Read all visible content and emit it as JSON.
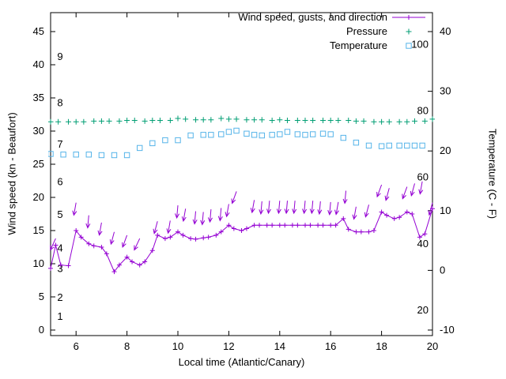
{
  "chart_data": {
    "type": "line",
    "xlabel": "Local time (Atlantic/Canary)",
    "ylabel_left": "Wind speed (kn - Beaufort)",
    "ylabel_right": "Temperature (C - F)",
    "x_range": [
      5,
      20
    ],
    "x_ticks": [
      "6",
      "8",
      "10",
      "12",
      "14",
      "16",
      "18",
      "20"
    ],
    "y_left_range": [
      -0.8,
      47.9
    ],
    "y_left_ticks": [
      "0",
      "5",
      "10",
      "15",
      "20",
      "25",
      "30",
      "35",
      "40",
      "45"
    ],
    "y_right_range": [
      -10.9,
      43.2
    ],
    "y_right_ticks": [
      "-10",
      "0",
      "10",
      "20",
      "30",
      "40"
    ],
    "grid": false,
    "legend_position": "top-right-inside",
    "beaufort_labels": [
      [
        "1",
        2.0
      ],
      [
        "2",
        4.9
      ],
      [
        "3",
        9.2
      ],
      [
        "4",
        12.3
      ],
      [
        "5",
        17.4
      ],
      [
        "6",
        22.3
      ],
      [
        "7",
        28.0
      ],
      [
        "8",
        34.2
      ],
      [
        "9",
        41.2
      ]
    ],
    "fahrenheit_labels": [
      [
        "20",
        -6.7
      ],
      [
        "40",
        4.4
      ],
      [
        "60",
        15.6
      ],
      [
        "80",
        26.7
      ],
      [
        "100",
        37.8
      ]
    ],
    "legend": {
      "entries": [
        {
          "label": "Wind speed, gusts, and direction",
          "marker": "line-plus",
          "color": "#9400d3"
        },
        {
          "label": "Pressure",
          "marker": "plus",
          "color": "#009e73"
        },
        {
          "label": "Temperature",
          "marker": "square",
          "color": "#56b4e9"
        }
      ]
    },
    "series": {
      "wind_speed": {
        "name": "Wind speed, gusts, and direction",
        "color": "#9400d3",
        "axis": "left",
        "points": [
          [
            5,
            9.3
          ],
          [
            5.2,
            12.8
          ],
          [
            5.4,
            9.8
          ],
          [
            5.7,
            9.7
          ],
          [
            6,
            15
          ],
          [
            6.2,
            14
          ],
          [
            6.5,
            13
          ],
          [
            6.7,
            12.7
          ],
          [
            7,
            12.5
          ],
          [
            7.2,
            11.5
          ],
          [
            7.5,
            8.8
          ],
          [
            7.7,
            9.8
          ],
          [
            8,
            11
          ],
          [
            8.2,
            10.3
          ],
          [
            8.5,
            9.8
          ],
          [
            8.7,
            10.3
          ],
          [
            9,
            12
          ],
          [
            9.2,
            14.3
          ],
          [
            9.5,
            13.8
          ],
          [
            9.7,
            14
          ],
          [
            10,
            14.8
          ],
          [
            10.2,
            14.3
          ],
          [
            10.5,
            13.8
          ],
          [
            10.7,
            13.7
          ],
          [
            11,
            13.9
          ],
          [
            11.2,
            14
          ],
          [
            11.5,
            14.3
          ],
          [
            11.7,
            14.8
          ],
          [
            12,
            15.8
          ],
          [
            12.2,
            15.3
          ],
          [
            12.5,
            15
          ],
          [
            12.7,
            15.3
          ],
          [
            13,
            15.8
          ],
          [
            13.2,
            15.8
          ],
          [
            13.5,
            15.8
          ],
          [
            13.7,
            15.8
          ],
          [
            14,
            15.8
          ],
          [
            14.2,
            15.8
          ],
          [
            14.5,
            15.8
          ],
          [
            14.7,
            15.8
          ],
          [
            15,
            15.8
          ],
          [
            15.2,
            15.8
          ],
          [
            15.5,
            15.8
          ],
          [
            15.7,
            15.8
          ],
          [
            16,
            15.8
          ],
          [
            16.2,
            15.8
          ],
          [
            16.5,
            16.8
          ],
          [
            16.7,
            15.2
          ],
          [
            17,
            14.8
          ],
          [
            17.2,
            14.8
          ],
          [
            17.5,
            14.8
          ],
          [
            17.7,
            15
          ],
          [
            18,
            17.8
          ],
          [
            18.2,
            17.3
          ],
          [
            18.5,
            16.8
          ],
          [
            18.7,
            17
          ],
          [
            19,
            17.8
          ],
          [
            19.2,
            17.5
          ],
          [
            19.5,
            14
          ],
          [
            19.7,
            14.5
          ],
          [
            20,
            18.3
          ]
        ]
      },
      "wind_gust_arrows": {
        "name": "gust direction arrows",
        "color": "#9400d3",
        "axis": "left",
        "points": [
          [
            5.2,
            13.8,
            205
          ],
          [
            6,
            19.2,
            190
          ],
          [
            6.5,
            17.3,
            185
          ],
          [
            7,
            16.2,
            190
          ],
          [
            7.5,
            14.8,
            195
          ],
          [
            8,
            14.3,
            200
          ],
          [
            8.5,
            13.8,
            205
          ],
          [
            9.2,
            16.4,
            195
          ],
          [
            9.7,
            16.5,
            190
          ],
          [
            10,
            18.8,
            185
          ],
          [
            10.3,
            18.3,
            190
          ],
          [
            10.7,
            17.9,
            185
          ],
          [
            11,
            17.8,
            185
          ],
          [
            11.3,
            18.2,
            185
          ],
          [
            11.7,
            18.4,
            185
          ],
          [
            12,
            19,
            190
          ],
          [
            12.3,
            20.9,
            200
          ],
          [
            13,
            19.6,
            190
          ],
          [
            13.3,
            19.4,
            185
          ],
          [
            13.6,
            19.5,
            185
          ],
          [
            14,
            19.5,
            185
          ],
          [
            14.3,
            19.5,
            185
          ],
          [
            14.6,
            19.5,
            185
          ],
          [
            15,
            19.5,
            185
          ],
          [
            15.3,
            19.5,
            185
          ],
          [
            15.6,
            19.4,
            185
          ],
          [
            16,
            19.3,
            185
          ],
          [
            16.3,
            19.3,
            190
          ],
          [
            16.6,
            21,
            185
          ],
          [
            17,
            18.6,
            190
          ],
          [
            17.5,
            18.9,
            195
          ],
          [
            18,
            21.9,
            200
          ],
          [
            18.3,
            21.4,
            195
          ],
          [
            19,
            21.6,
            200
          ],
          [
            19.3,
            22.1,
            195
          ],
          [
            19.6,
            22.4,
            190
          ],
          [
            20,
            19.2,
            195
          ]
        ]
      },
      "pressure": {
        "name": "Pressure",
        "color": "#009e73",
        "axis": "left",
        "points": [
          [
            5,
            31.4
          ],
          [
            5.3,
            31.4
          ],
          [
            5.7,
            31.4
          ],
          [
            6,
            31.4
          ],
          [
            6.3,
            31.4
          ],
          [
            6.7,
            31.5
          ],
          [
            7,
            31.5
          ],
          [
            7.3,
            31.5
          ],
          [
            7.7,
            31.5
          ],
          [
            8,
            31.6
          ],
          [
            8.3,
            31.6
          ],
          [
            8.7,
            31.5
          ],
          [
            9,
            31.6
          ],
          [
            9.3,
            31.6
          ],
          [
            9.7,
            31.6
          ],
          [
            10,
            31.9
          ],
          [
            10.3,
            31.8
          ],
          [
            10.7,
            31.7
          ],
          [
            11,
            31.7
          ],
          [
            11.3,
            31.7
          ],
          [
            11.7,
            31.9
          ],
          [
            12,
            31.8
          ],
          [
            12.3,
            31.8
          ],
          [
            12.7,
            31.7
          ],
          [
            13,
            31.7
          ],
          [
            13.3,
            31.7
          ],
          [
            13.7,
            31.6
          ],
          [
            14,
            31.7
          ],
          [
            14.3,
            31.6
          ],
          [
            14.7,
            31.6
          ],
          [
            15,
            31.6
          ],
          [
            15.3,
            31.6
          ],
          [
            15.7,
            31.6
          ],
          [
            16,
            31.6
          ],
          [
            16.3,
            31.6
          ],
          [
            16.7,
            31.6
          ],
          [
            17,
            31.5
          ],
          [
            17.3,
            31.5
          ],
          [
            17.7,
            31.4
          ],
          [
            18,
            31.4
          ],
          [
            18.3,
            31.4
          ],
          [
            18.7,
            31.4
          ],
          [
            19,
            31.4
          ],
          [
            19.3,
            31.5
          ],
          [
            19.7,
            31.5
          ],
          [
            20,
            31.8
          ]
        ]
      },
      "temperature": {
        "name": "Temperature",
        "color": "#56b4e9",
        "axis": "right",
        "points": [
          [
            5,
            19.5
          ],
          [
            5.5,
            19.4
          ],
          [
            6,
            19.4
          ],
          [
            6.5,
            19.4
          ],
          [
            7,
            19.3
          ],
          [
            7.5,
            19.3
          ],
          [
            8,
            19.3
          ],
          [
            8.5,
            20.5
          ],
          [
            9,
            21.3
          ],
          [
            9.5,
            21.8
          ],
          [
            10,
            21.8
          ],
          [
            10.5,
            22.6
          ],
          [
            11,
            22.7
          ],
          [
            11.3,
            22.7
          ],
          [
            11.7,
            22.8
          ],
          [
            12,
            23.2
          ],
          [
            12.3,
            23.4
          ],
          [
            12.7,
            22.9
          ],
          [
            13,
            22.7
          ],
          [
            13.3,
            22.6
          ],
          [
            13.7,
            22.7
          ],
          [
            14,
            22.8
          ],
          [
            14.3,
            23.2
          ],
          [
            14.7,
            22.8
          ],
          [
            15,
            22.7
          ],
          [
            15.3,
            22.8
          ],
          [
            15.7,
            22.9
          ],
          [
            16,
            22.8
          ],
          [
            16.5,
            22.2
          ],
          [
            17,
            21.4
          ],
          [
            17.5,
            20.9
          ],
          [
            18,
            20.8
          ],
          [
            18.3,
            20.9
          ],
          [
            18.7,
            20.9
          ],
          [
            19,
            20.9
          ],
          [
            19.3,
            20.9
          ],
          [
            19.6,
            20.9
          ]
        ]
      }
    }
  }
}
